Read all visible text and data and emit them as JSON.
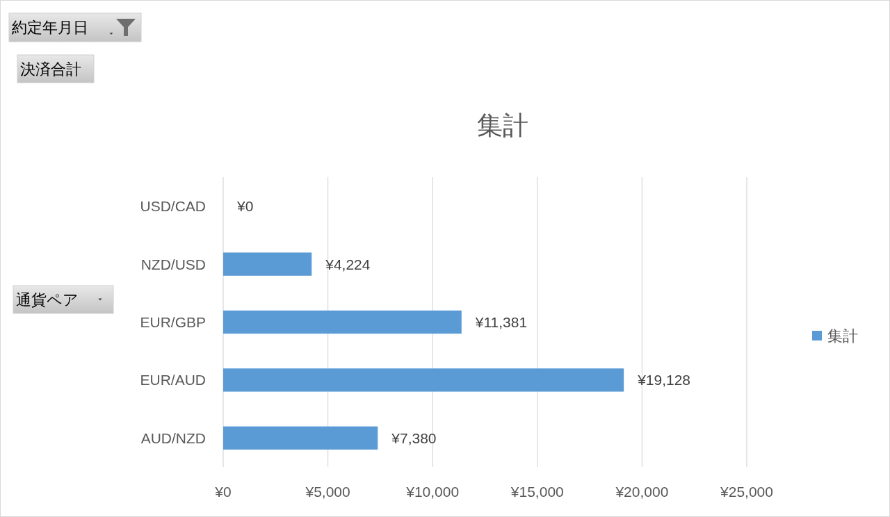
{
  "chart_data": {
    "type": "bar",
    "orientation": "horizontal",
    "title": "集計",
    "categories": [
      "USD/CAD",
      "NZD/USD",
      "EUR/GBP",
      "EUR/AUD",
      "AUD/NZD"
    ],
    "series": [
      {
        "name": "集計",
        "color": "#5b9bd5",
        "values": [
          0,
          4224,
          11381,
          19128,
          7380
        ],
        "value_labels": [
          "¥0",
          "¥4,224",
          "¥11,381",
          "¥19,128",
          "¥7,380"
        ]
      }
    ],
    "xlim": [
      0,
      25000
    ],
    "xticks": [
      {
        "value": 0,
        "label": "¥0"
      },
      {
        "value": 5000,
        "label": "¥5,000"
      },
      {
        "value": 10000,
        "label": "¥10,000"
      },
      {
        "value": 15000,
        "label": "¥15,000"
      },
      {
        "value": 20000,
        "label": "¥20,000"
      },
      {
        "value": 25000,
        "label": "¥25,000"
      }
    ],
    "grid": "x",
    "legend": "right",
    "annotations": [
      "約定年月日",
      "決済合計",
      "通貨ペア"
    ]
  }
}
